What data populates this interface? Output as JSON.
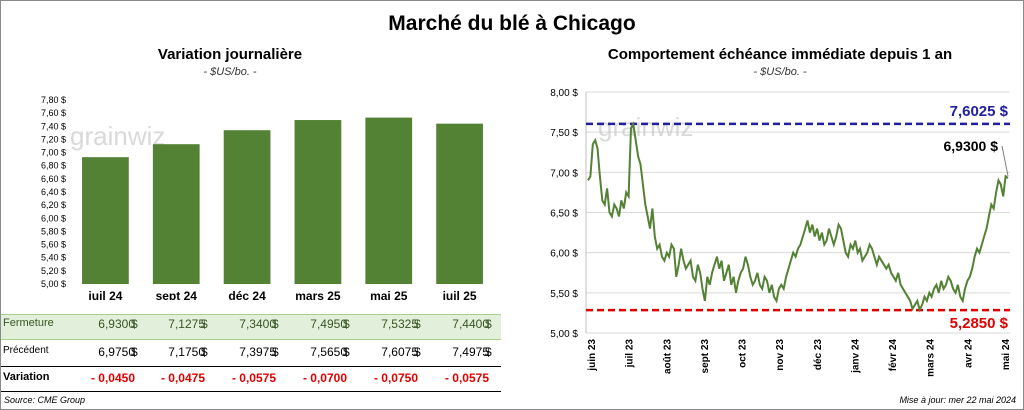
{
  "title": "Marché du blé à Chicago",
  "source": "Source: CME Group",
  "update": "Mise à jour: mer 22 mai 2024",
  "watermark": "grainwiz",
  "left_chart": {
    "title": "Variation  journalière",
    "subtitle": "- $US/bo. -"
  },
  "right_chart": {
    "title": "Comportement  échéance immédiate depuis 1 an",
    "subtitle": "- $US/bo. -",
    "high_label": "7,6025 $",
    "low_label": "5,2850 $",
    "last_label": "6,9300 $"
  },
  "table": {
    "rows": [
      {
        "label": "Fermeture",
        "values": [
          "6,9300",
          "7,1275",
          "7,3400",
          "7,4950",
          "7,5325",
          "7,4400"
        ]
      },
      {
        "label": "Précédent",
        "values": [
          "6,9750",
          "7,1750",
          "7,3975",
          "7,5650",
          "7,6075",
          "7,4975"
        ]
      },
      {
        "label": "Variation",
        "values": [
          "- 0,0450",
          "- 0,0475",
          "- 0,0575",
          "- 0,0700",
          "- 0,0750",
          "- 0,0575"
        ]
      }
    ],
    "currency": "$"
  },
  "chart_data": [
    {
      "type": "bar",
      "categories": [
        "juil 24",
        "sept 24",
        "déc 24",
        "mars 25",
        "mai 25",
        "juil 25"
      ],
      "values": [
        6.93,
        7.1275,
        7.34,
        7.495,
        7.5325,
        7.44
      ],
      "ylim": [
        5.0,
        7.8
      ],
      "yticks": [
        "5,00 $",
        "5,20 $",
        "5,40 $",
        "5,60 $",
        "5,80 $",
        "6,00 $",
        "6,20 $",
        "6,40 $",
        "6,60 $",
        "6,80 $",
        "7,00 $",
        "7,20 $",
        "7,40 $",
        "7,60 $",
        "7,80 $"
      ],
      "ytick_values": [
        5.0,
        5.2,
        5.4,
        5.6,
        5.8,
        6.0,
        6.2,
        6.4,
        6.6,
        6.8,
        7.0,
        7.2,
        7.4,
        7.6,
        7.8
      ],
      "color": "#548235",
      "title": "Variation  journalière",
      "xlabel": "",
      "ylabel": ""
    },
    {
      "type": "line",
      "x_labels": [
        "juin 23",
        "juil 23",
        "août 23",
        "sept 23",
        "oct 23",
        "nov 23",
        "déc 23",
        "janv 24",
        "févr 24",
        "mars 24",
        "avr 24",
        "mai 24"
      ],
      "ylim": [
        5.0,
        8.0
      ],
      "yticks": [
        "5,00 $",
        "5,50 $",
        "6,00 $",
        "6,50 $",
        "7,00 $",
        "7,50 $",
        "8,00 $"
      ],
      "ytick_values": [
        5.0,
        5.5,
        6.0,
        6.5,
        7.0,
        7.5,
        8.0
      ],
      "high": 7.6025,
      "low": 5.285,
      "last": 6.93,
      "color": "#548235",
      "high_color": "#1f1fa0",
      "low_color": "#e00000",
      "values": [
        6.9,
        6.95,
        7.35,
        7.4,
        7.3,
        6.95,
        6.65,
        6.6,
        6.8,
        6.5,
        6.45,
        6.6,
        6.55,
        6.45,
        6.65,
        6.55,
        6.75,
        6.7,
        7.55,
        7.6,
        7.4,
        7.2,
        7.1,
        6.85,
        6.6,
        6.45,
        6.3,
        6.55,
        6.2,
        6.05,
        6.1,
        5.95,
        5.9,
        6.0,
        5.95,
        6.1,
        6.05,
        5.7,
        5.85,
        6.05,
        5.9,
        5.8,
        5.85,
        5.9,
        5.7,
        5.65,
        5.85,
        5.75,
        5.55,
        5.4,
        5.7,
        5.6,
        5.75,
        5.85,
        5.95,
        5.8,
        5.9,
        5.65,
        5.75,
        5.85,
        5.6,
        5.7,
        5.5,
        5.65,
        5.75,
        5.8,
        5.95,
        5.85,
        5.7,
        5.6,
        5.65,
        5.75,
        5.6,
        5.55,
        5.7,
        5.65,
        5.5,
        5.6,
        5.45,
        5.4,
        5.55,
        5.6,
        5.55,
        5.7,
        5.8,
        5.9,
        6.0,
        5.95,
        6.05,
        6.1,
        6.2,
        6.3,
        6.4,
        6.25,
        6.35,
        6.2,
        6.3,
        6.15,
        6.25,
        6.1,
        6.15,
        6.3,
        6.2,
        6.1,
        6.2,
        6.35,
        6.3,
        6.15,
        6.0,
        5.95,
        6.1,
        6.05,
        6.15,
        6.0,
        6.05,
        5.9,
        5.95,
        6.0,
        6.1,
        6.05,
        5.95,
        5.85,
        5.95,
        5.9,
        5.85,
        5.8,
        5.85,
        5.75,
        5.7,
        5.65,
        5.75,
        5.6,
        5.55,
        5.5,
        5.45,
        5.4,
        5.3,
        5.35,
        5.4,
        5.29,
        5.35,
        5.45,
        5.4,
        5.5,
        5.45,
        5.55,
        5.6,
        5.5,
        5.65,
        5.55,
        5.6,
        5.7,
        5.65,
        5.55,
        5.5,
        5.6,
        5.45,
        5.4,
        5.55,
        5.65,
        5.7,
        5.8,
        5.95,
        6.05,
        6.0,
        6.1,
        6.2,
        6.3,
        6.45,
        6.6,
        6.55,
        6.75,
        6.9,
        6.85,
        6.7,
        6.95,
        6.93
      ]
    }
  ]
}
